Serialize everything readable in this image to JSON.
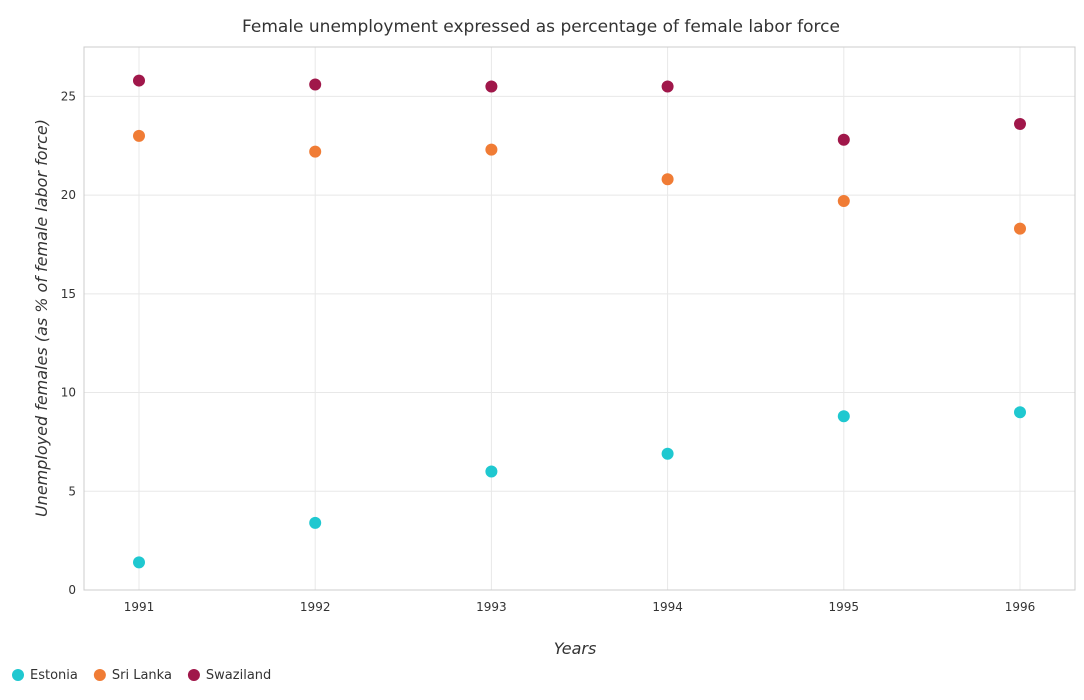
{
  "chart_data": {
    "type": "scatter",
    "title": "Female unemployment expressed as percentage of female labor force",
    "xlabel": "Years",
    "ylabel": "Unemployed females (as % of female labor force)",
    "categories": [
      "1991",
      "1992",
      "1993",
      "1994",
      "1995",
      "1996"
    ],
    "y_ticks": [
      "0",
      "5",
      "10",
      "15",
      "20",
      "25"
    ],
    "ylim": [
      0,
      27.5
    ],
    "grid": true,
    "legend_position": "bottom-left",
    "series": [
      {
        "name": "Estonia",
        "color": "#1fc8d0",
        "values": [
          1.4,
          3.4,
          6.0,
          6.9,
          8.8,
          9.0
        ]
      },
      {
        "name": "Sri Lanka",
        "color": "#f07c35",
        "values": [
          23.0,
          22.2,
          22.3,
          20.8,
          19.7,
          18.3
        ]
      },
      {
        "name": "Swaziland",
        "color": "#a0174a",
        "values": [
          25.8,
          25.6,
          25.5,
          25.5,
          22.8,
          23.6
        ]
      }
    ]
  }
}
